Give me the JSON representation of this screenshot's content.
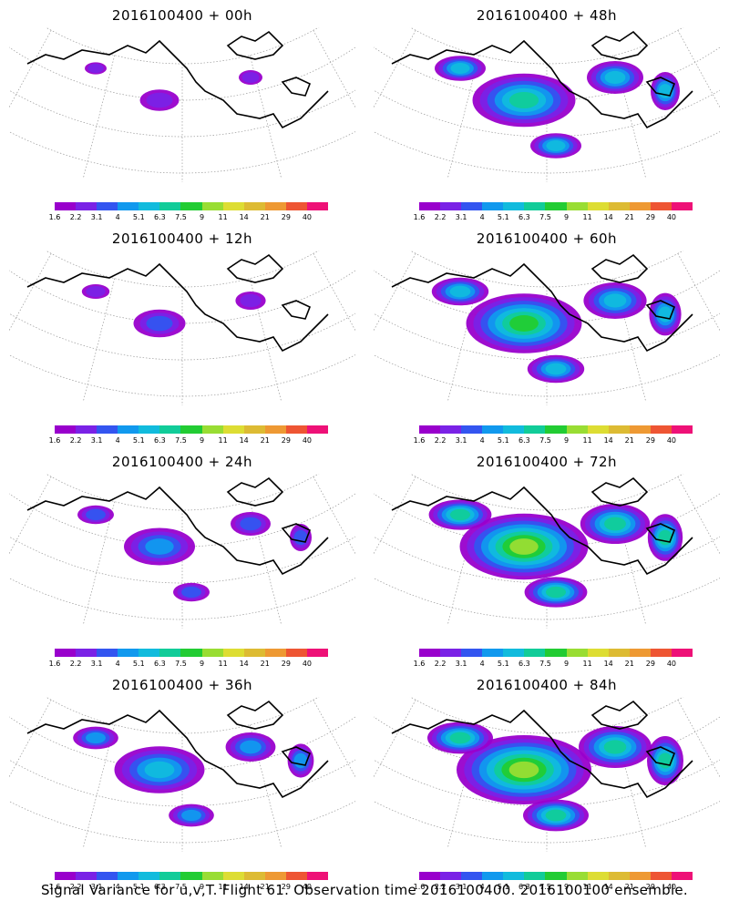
{
  "panels": [
    {
      "title": "2016100400 + 00h"
    },
    {
      "title": "2016100400 + 48h"
    },
    {
      "title": "2016100400 + 12h"
    },
    {
      "title": "2016100400 + 60h"
    },
    {
      "title": "2016100400 + 24h"
    },
    {
      "title": "2016100400 + 72h"
    },
    {
      "title": "2016100400 + 36h"
    },
    {
      "title": "2016100400 + 84h"
    }
  ],
  "colorbar": {
    "ticks": [
      "1.6",
      "2.2",
      "3.1",
      "4",
      "5.1",
      "6.3",
      "7.5",
      "9",
      "11",
      "14",
      "21",
      "29",
      "40"
    ],
    "colors": [
      "#9900cc",
      "#7a22e6",
      "#3355f0",
      "#1199ee",
      "#11bbdd",
      "#11cc99",
      "#22cc33",
      "#99dd33",
      "#dddd33",
      "#ddbb33",
      "#ee9933",
      "#ee5533",
      "#ee1177"
    ]
  },
  "caption": "Signal Variance for u,v,T. Flight 61. Observation time 2016100400. 2016100100 ensemble."
}
